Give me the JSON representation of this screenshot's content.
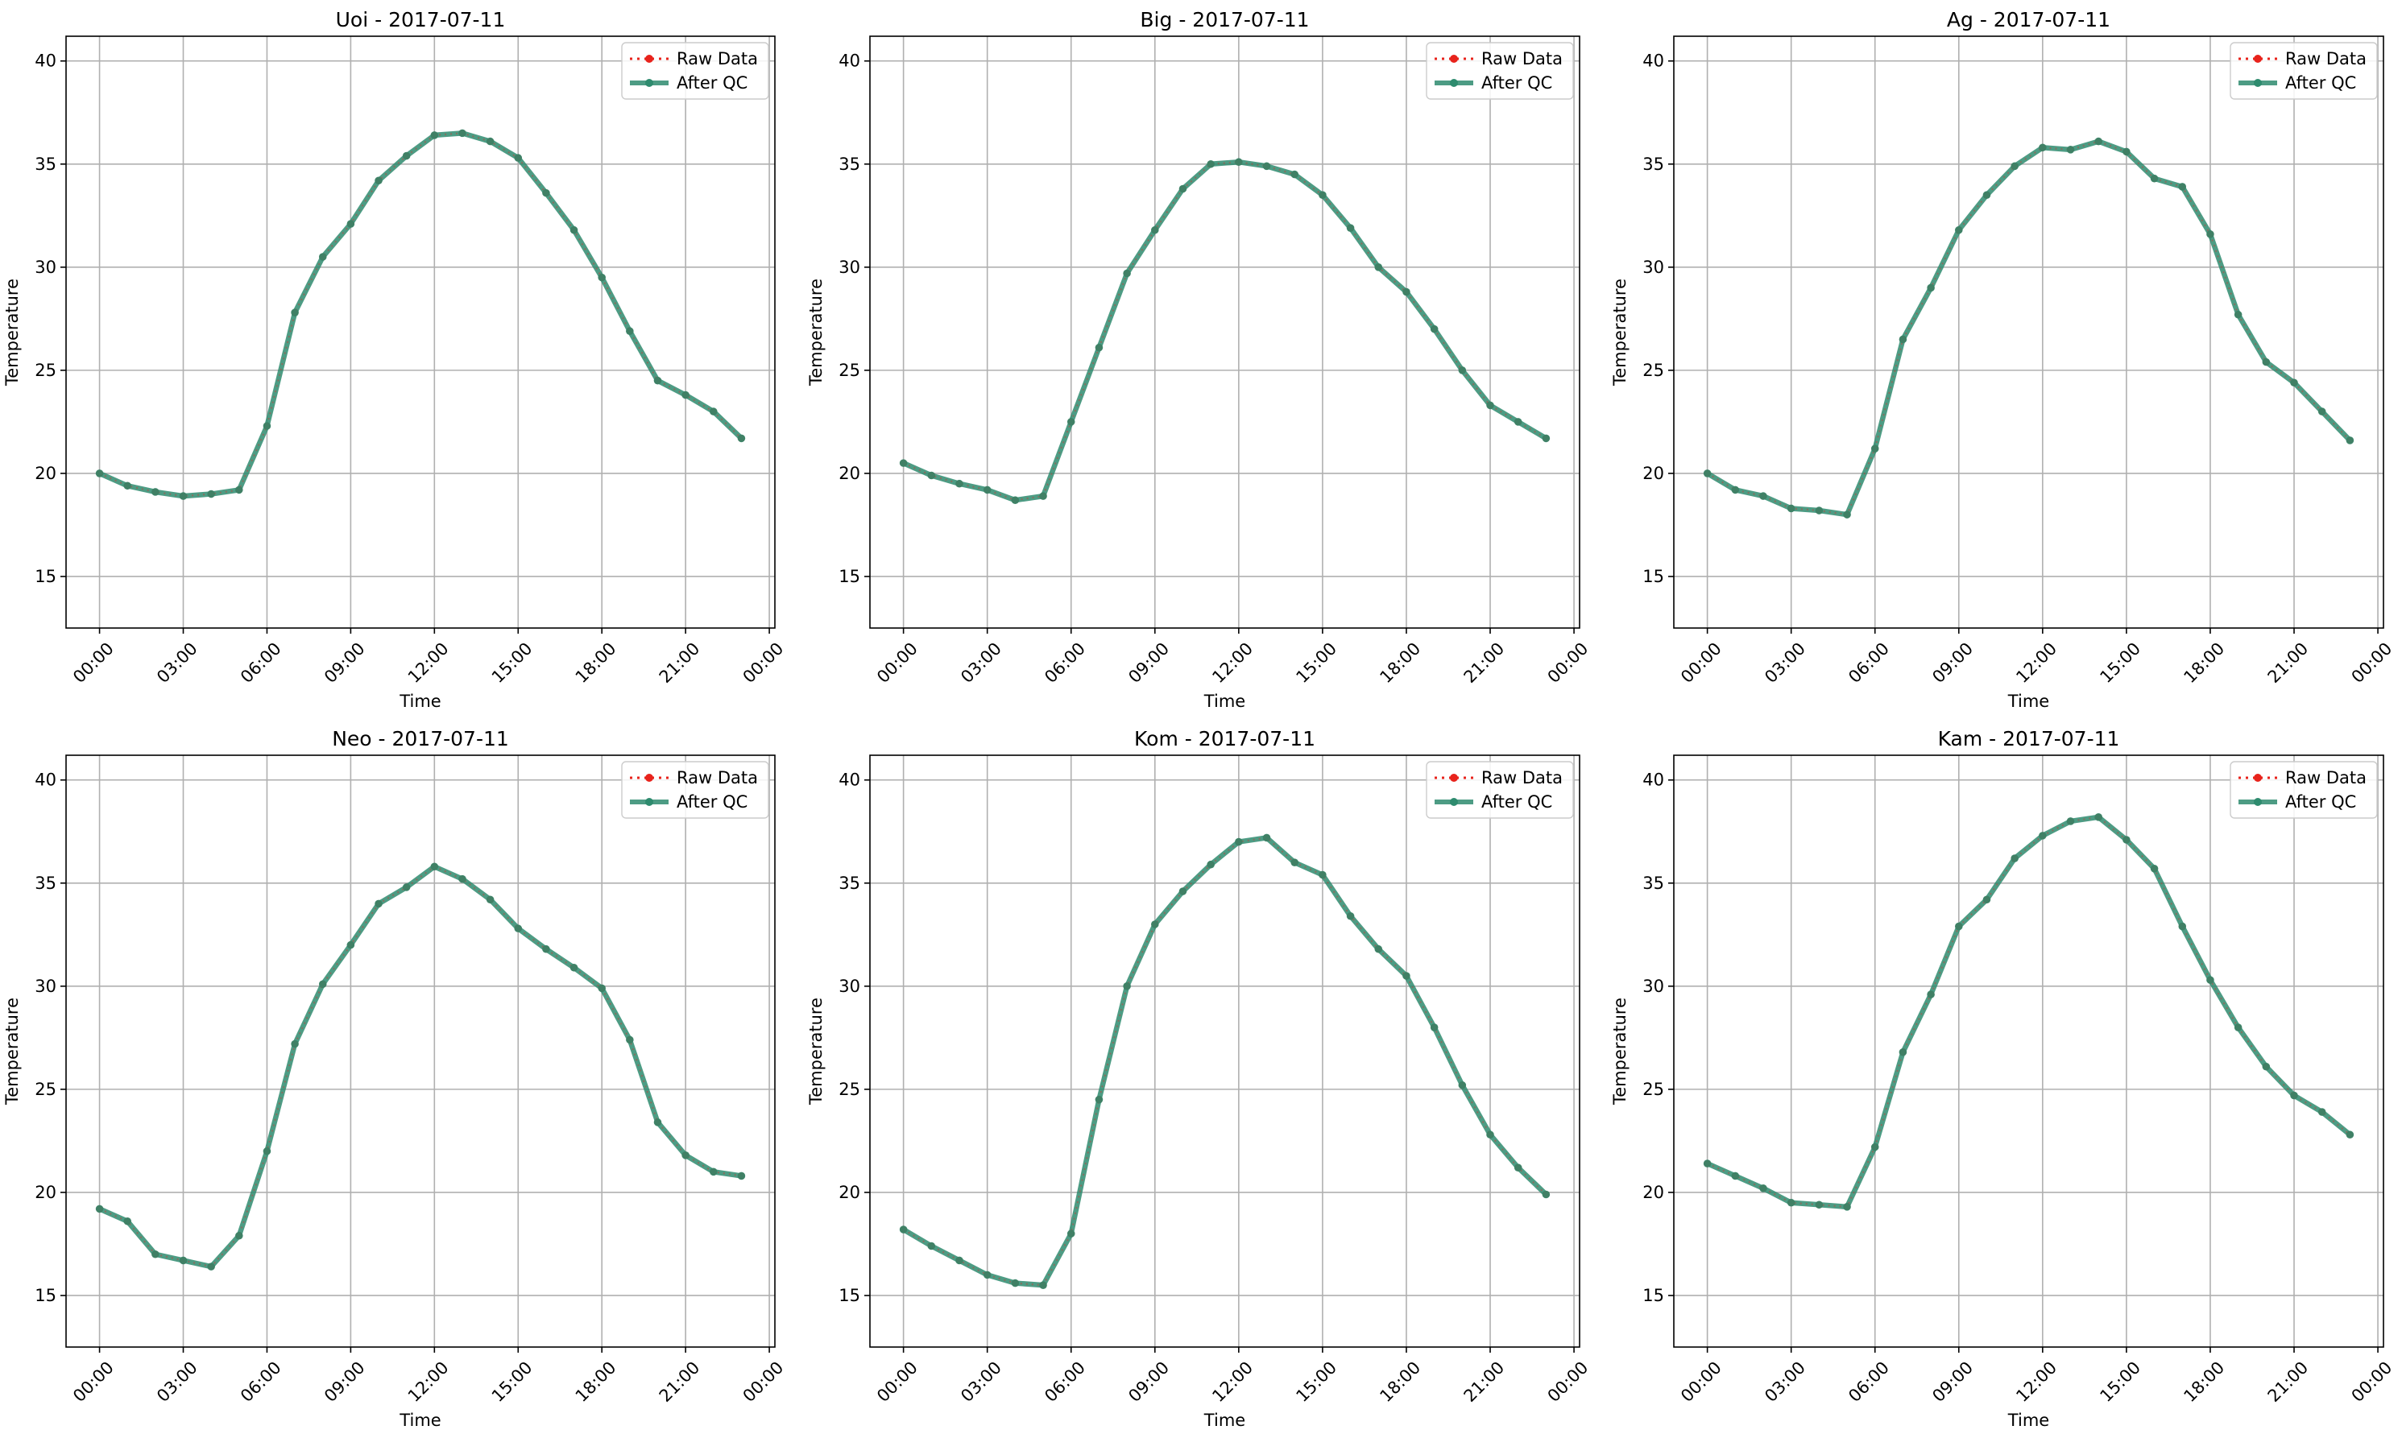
{
  "colors": {
    "raw": "#e8231c",
    "qc": "#2e8b6e",
    "grid": "#b0b0b0",
    "axis": "#000000",
    "legend_border": "#cccccc"
  },
  "chart_data": [
    {
      "type": "line",
      "title": "Uoi - 2017-07-11",
      "xlabel": "Time",
      "ylabel": "Temperature",
      "x_ticks": [
        "00:00",
        "03:00",
        "06:00",
        "09:00",
        "12:00",
        "15:00",
        "18:00",
        "21:00",
        "00:00"
      ],
      "y_ticks": [
        15,
        20,
        25,
        30,
        35,
        40
      ],
      "ylim": [
        12.5,
        41.2
      ],
      "xlim_hours": [
        -1.2,
        24.2
      ],
      "grid": true,
      "legend_position": "top-right",
      "x_hours": [
        0,
        1,
        2,
        3,
        4,
        5,
        6,
        7,
        8,
        9,
        10,
        11,
        12,
        13,
        14,
        15,
        16,
        17,
        18,
        19,
        20,
        21,
        22,
        23
      ],
      "series": [
        {
          "name": "Raw Data",
          "values": [
            20.0,
            19.4,
            19.1,
            18.9,
            19.0,
            19.2,
            22.3,
            27.8,
            30.5,
            32.1,
            34.2,
            35.4,
            36.4,
            36.5,
            36.1,
            35.3,
            33.6,
            31.8,
            29.5,
            26.9,
            24.5,
            23.8,
            23.0,
            21.7
          ]
        },
        {
          "name": "After QC",
          "values": [
            20.0,
            19.4,
            19.1,
            18.9,
            19.0,
            19.2,
            22.3,
            27.8,
            30.5,
            32.1,
            34.2,
            35.4,
            36.4,
            36.5,
            36.1,
            35.3,
            33.6,
            31.8,
            29.5,
            26.9,
            24.5,
            23.8,
            23.0,
            21.7
          ]
        }
      ]
    },
    {
      "type": "line",
      "title": "Big - 2017-07-11",
      "xlabel": "Time",
      "ylabel": "Temperature",
      "x_ticks": [
        "00:00",
        "03:00",
        "06:00",
        "09:00",
        "12:00",
        "15:00",
        "18:00",
        "21:00",
        "00:00"
      ],
      "y_ticks": [
        15,
        20,
        25,
        30,
        35,
        40
      ],
      "ylim": [
        12.5,
        41.2
      ],
      "xlim_hours": [
        -1.2,
        24.2
      ],
      "grid": true,
      "legend_position": "top-right",
      "x_hours": [
        0,
        1,
        2,
        3,
        4,
        5,
        6,
        7,
        8,
        9,
        10,
        11,
        12,
        13,
        14,
        15,
        16,
        17,
        18,
        19,
        20,
        21,
        22,
        23
      ],
      "series": [
        {
          "name": "Raw Data",
          "values": [
            20.5,
            19.9,
            19.5,
            19.2,
            18.7,
            18.9,
            22.5,
            26.1,
            29.7,
            31.8,
            33.8,
            35.0,
            35.1,
            34.9,
            34.5,
            33.5,
            31.9,
            30.0,
            28.8,
            27.0,
            25.0,
            23.3,
            22.5,
            21.7
          ]
        },
        {
          "name": "After QC",
          "values": [
            20.5,
            19.9,
            19.5,
            19.2,
            18.7,
            18.9,
            22.5,
            26.1,
            29.7,
            31.8,
            33.8,
            35.0,
            35.1,
            34.9,
            34.5,
            33.5,
            31.9,
            30.0,
            28.8,
            27.0,
            25.0,
            23.3,
            22.5,
            21.7
          ]
        }
      ]
    },
    {
      "type": "line",
      "title": "Ag - 2017-07-11",
      "xlabel": "Time",
      "ylabel": "Temperature",
      "x_ticks": [
        "00:00",
        "03:00",
        "06:00",
        "09:00",
        "12:00",
        "15:00",
        "18:00",
        "21:00",
        "00:00"
      ],
      "y_ticks": [
        15,
        20,
        25,
        30,
        35,
        40
      ],
      "ylim": [
        12.5,
        41.2
      ],
      "xlim_hours": [
        -1.2,
        24.2
      ],
      "grid": true,
      "legend_position": "top-right",
      "x_hours": [
        0,
        1,
        2,
        3,
        4,
        5,
        6,
        7,
        8,
        9,
        10,
        11,
        12,
        13,
        14,
        15,
        16,
        17,
        18,
        19,
        20,
        21,
        22,
        23
      ],
      "series": [
        {
          "name": "Raw Data",
          "values": [
            20.0,
            19.2,
            18.9,
            18.3,
            18.2,
            18.0,
            21.2,
            26.5,
            29.0,
            31.8,
            33.5,
            34.9,
            35.8,
            35.7,
            36.1,
            35.6,
            34.3,
            33.9,
            31.6,
            27.7,
            25.4,
            24.4,
            23.0,
            21.6
          ]
        },
        {
          "name": "After QC",
          "values": [
            20.0,
            19.2,
            18.9,
            18.3,
            18.2,
            18.0,
            21.2,
            26.5,
            29.0,
            31.8,
            33.5,
            34.9,
            35.8,
            35.7,
            36.1,
            35.6,
            34.3,
            33.9,
            31.6,
            27.7,
            25.4,
            24.4,
            23.0,
            21.6
          ]
        }
      ]
    },
    {
      "type": "line",
      "title": "Neo - 2017-07-11",
      "xlabel": "Time",
      "ylabel": "Temperature",
      "x_ticks": [
        "00:00",
        "03:00",
        "06:00",
        "09:00",
        "12:00",
        "15:00",
        "18:00",
        "21:00",
        "00:00"
      ],
      "y_ticks": [
        15,
        20,
        25,
        30,
        35,
        40
      ],
      "ylim": [
        12.5,
        41.2
      ],
      "xlim_hours": [
        -1.2,
        24.2
      ],
      "grid": true,
      "legend_position": "top-right",
      "x_hours": [
        0,
        1,
        2,
        3,
        4,
        5,
        6,
        7,
        8,
        9,
        10,
        11,
        12,
        13,
        14,
        15,
        16,
        17,
        18,
        19,
        20,
        21,
        22,
        23
      ],
      "series": [
        {
          "name": "Raw Data",
          "values": [
            19.2,
            18.6,
            17.0,
            16.7,
            16.4,
            17.9,
            22.0,
            27.2,
            30.1,
            32.0,
            34.0,
            34.8,
            35.8,
            35.2,
            34.2,
            32.8,
            31.8,
            30.9,
            29.9,
            27.4,
            23.4,
            21.8,
            21.0,
            20.8
          ]
        },
        {
          "name": "After QC",
          "values": [
            19.2,
            18.6,
            17.0,
            16.7,
            16.4,
            17.9,
            22.0,
            27.2,
            30.1,
            32.0,
            34.0,
            34.8,
            35.8,
            35.2,
            34.2,
            32.8,
            31.8,
            30.9,
            29.9,
            27.4,
            23.4,
            21.8,
            21.0,
            20.8
          ]
        }
      ]
    },
    {
      "type": "line",
      "title": "Kom - 2017-07-11",
      "xlabel": "Time",
      "ylabel": "Temperature",
      "x_ticks": [
        "00:00",
        "03:00",
        "06:00",
        "09:00",
        "12:00",
        "15:00",
        "18:00",
        "21:00",
        "00:00"
      ],
      "y_ticks": [
        15,
        20,
        25,
        30,
        35,
        40
      ],
      "ylim": [
        12.5,
        41.2
      ],
      "xlim_hours": [
        -1.2,
        24.2
      ],
      "grid": true,
      "legend_position": "top-right",
      "x_hours": [
        0,
        1,
        2,
        3,
        4,
        5,
        6,
        7,
        8,
        9,
        10,
        11,
        12,
        13,
        14,
        15,
        16,
        17,
        18,
        19,
        20,
        21,
        22,
        23
      ],
      "series": [
        {
          "name": "Raw Data",
          "values": [
            18.2,
            17.4,
            16.7,
            16.0,
            15.6,
            15.5,
            18.0,
            24.5,
            30.0,
            33.0,
            34.6,
            35.9,
            37.0,
            37.2,
            36.0,
            35.4,
            33.4,
            31.8,
            30.5,
            28.0,
            25.2,
            22.8,
            21.2,
            19.9
          ]
        },
        {
          "name": "After QC",
          "values": [
            18.2,
            17.4,
            16.7,
            16.0,
            15.6,
            15.5,
            18.0,
            24.5,
            30.0,
            33.0,
            34.6,
            35.9,
            37.0,
            37.2,
            36.0,
            35.4,
            33.4,
            31.8,
            30.5,
            28.0,
            25.2,
            22.8,
            21.2,
            19.9
          ]
        }
      ]
    },
    {
      "type": "line",
      "title": "Kam - 2017-07-11",
      "xlabel": "Time",
      "ylabel": "Temperature",
      "x_ticks": [
        "00:00",
        "03:00",
        "06:00",
        "09:00",
        "12:00",
        "15:00",
        "18:00",
        "21:00",
        "00:00"
      ],
      "y_ticks": [
        15,
        20,
        25,
        30,
        35,
        40
      ],
      "ylim": [
        12.5,
        41.2
      ],
      "xlim_hours": [
        -1.2,
        24.2
      ],
      "grid": true,
      "legend_position": "top-right",
      "x_hours": [
        0,
        1,
        2,
        3,
        4,
        5,
        6,
        7,
        8,
        9,
        10,
        11,
        12,
        13,
        14,
        15,
        16,
        17,
        18,
        19,
        20,
        21,
        22,
        23
      ],
      "series": [
        {
          "name": "Raw Data",
          "values": [
            21.4,
            20.8,
            20.2,
            19.5,
            19.4,
            19.3,
            22.2,
            26.8,
            29.6,
            32.9,
            34.2,
            36.2,
            37.3,
            38.0,
            38.2,
            37.1,
            35.7,
            32.9,
            30.3,
            28.0,
            26.1,
            24.7,
            23.9,
            22.8
          ]
        },
        {
          "name": "After QC",
          "values": [
            21.4,
            20.8,
            20.2,
            19.5,
            19.4,
            19.3,
            22.2,
            26.8,
            29.6,
            32.9,
            34.2,
            36.2,
            37.3,
            38.0,
            38.2,
            37.1,
            35.7,
            32.9,
            30.3,
            28.0,
            26.1,
            24.7,
            23.9,
            22.8
          ]
        }
      ]
    }
  ]
}
